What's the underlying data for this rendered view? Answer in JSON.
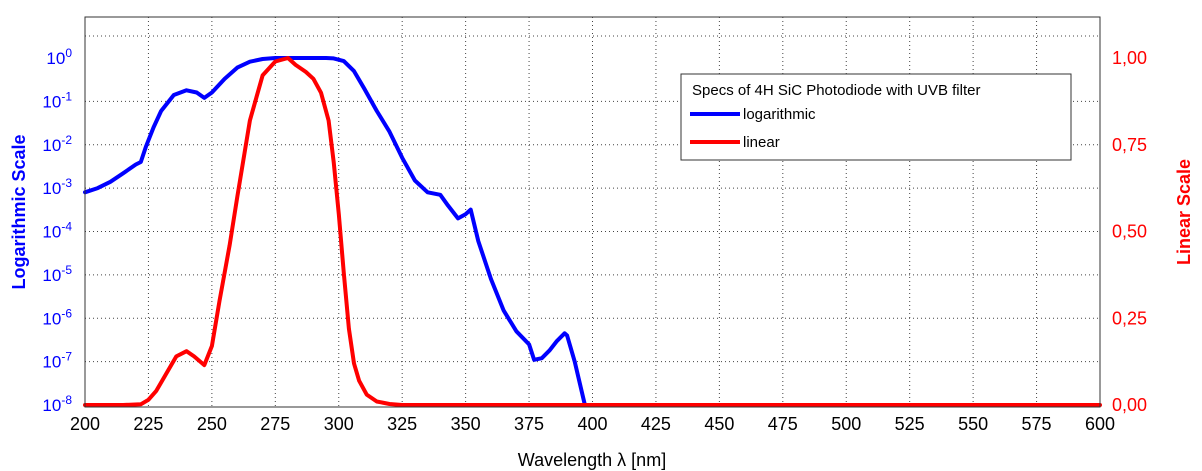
{
  "chart_data": {
    "type": "line",
    "title": "",
    "xlabel": "Wavelength λ [nm]",
    "ylabel_left": "Logarithmic Scale",
    "ylabel_right": "Linear Scale",
    "xlim": [
      200,
      600
    ],
    "ylim_left": [
      1e-08,
      10
    ],
    "ylim_right": [
      0,
      1.15
    ],
    "y_left_scale": "log",
    "grid": true,
    "x_ticks": [
      "200",
      "225",
      "250",
      "275",
      "300",
      "325",
      "350",
      "375",
      "400",
      "425",
      "450",
      "475",
      "500",
      "525",
      "550",
      "575",
      "600"
    ],
    "y_left_ticks": [
      {
        "base": "10",
        "exp": "0",
        "value": 1
      },
      {
        "base": "10",
        "exp": "-1",
        "value": 0.1
      },
      {
        "base": "10",
        "exp": "-2",
        "value": 0.01
      },
      {
        "base": "10",
        "exp": "-3",
        "value": 0.001
      },
      {
        "base": "10",
        "exp": "-4",
        "value": 0.0001
      },
      {
        "base": "10",
        "exp": "-5",
        "value": 1e-05
      },
      {
        "base": "10",
        "exp": "-6",
        "value": 1e-06
      },
      {
        "base": "10",
        "exp": "-7",
        "value": 1e-07
      },
      {
        "base": "10",
        "exp": "-8",
        "value": 1e-08
      }
    ],
    "y_right_ticks": [
      {
        "label": "1,00",
        "value": 1.0
      },
      {
        "label": "0,75",
        "value": 0.75
      },
      {
        "label": "0,50",
        "value": 0.5
      },
      {
        "label": "0,25",
        "value": 0.25
      },
      {
        "label": "0,00",
        "value": 0.0
      }
    ],
    "legend": {
      "title": "Specs of 4H SiC Photodiode with UVB filter",
      "placement": "top-right",
      "entries": [
        "logarithmic",
        "linear"
      ]
    },
    "series": [
      {
        "name": "logarithmic",
        "color": "#0000ff",
        "axis": "left",
        "x": [
          200,
          205,
          210,
          215,
          220,
          222,
          224,
          227,
          230,
          235,
          240,
          244,
          247,
          250,
          255,
          260,
          265,
          270,
          275,
          280,
          285,
          290,
          295,
          298,
          302,
          306,
          310,
          315,
          320,
          325,
          330,
          335,
          340,
          343,
          347,
          350,
          352,
          355,
          360,
          365,
          370,
          375,
          377,
          380,
          383,
          386,
          389,
          390,
          393,
          397
        ],
        "y": [
          0.0008,
          0.001,
          0.0014,
          0.0022,
          0.0035,
          0.004,
          0.009,
          0.025,
          0.06,
          0.14,
          0.18,
          0.16,
          0.12,
          0.16,
          0.33,
          0.6,
          0.82,
          0.95,
          1.0,
          1.0,
          1.0,
          1.0,
          1.0,
          0.98,
          0.85,
          0.5,
          0.2,
          0.06,
          0.02,
          0.005,
          0.0015,
          0.0008,
          0.0007,
          0.0004,
          0.0002,
          0.00025,
          0.00032,
          6e-05,
          8e-06,
          1.5e-06,
          5e-07,
          2.5e-07,
          1.1e-07,
          1.2e-07,
          1.8e-07,
          3e-07,
          4.5e-07,
          4e-07,
          1e-07,
          1e-08
        ]
      },
      {
        "name": "linear",
        "color": "#ff0000",
        "axis": "right",
        "x": [
          200,
          215,
          222,
          225,
          228,
          232,
          236,
          240,
          243,
          247,
          250,
          253,
          257,
          260,
          265,
          270,
          275,
          280,
          283,
          287,
          290,
          293,
          296,
          298,
          300,
          302,
          304,
          306,
          308,
          311,
          315,
          320,
          325,
          330,
          350,
          400,
          500,
          600
        ],
        "y": [
          0.0,
          0.0,
          0.002,
          0.015,
          0.04,
          0.09,
          0.14,
          0.155,
          0.14,
          0.115,
          0.17,
          0.3,
          0.46,
          0.6,
          0.82,
          0.95,
          0.99,
          1.0,
          0.98,
          0.96,
          0.94,
          0.9,
          0.82,
          0.7,
          0.55,
          0.38,
          0.22,
          0.12,
          0.07,
          0.03,
          0.01,
          0.003,
          0.0,
          0.0,
          0.0,
          0.0,
          0.0,
          0.0
        ]
      }
    ]
  },
  "colors": {
    "left_axis": "#0000ff",
    "right_axis": "#ff0000",
    "grid": "#444444"
  }
}
